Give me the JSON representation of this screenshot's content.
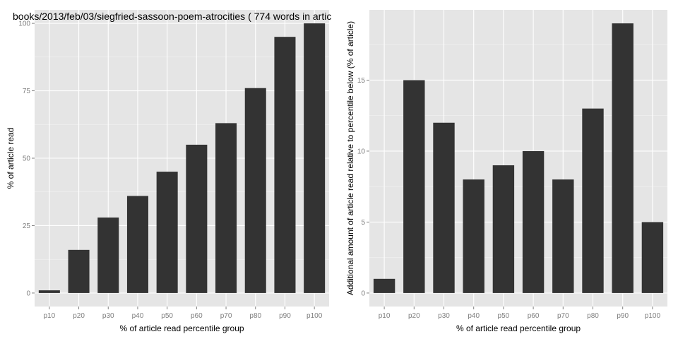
{
  "chart_data": [
    {
      "type": "bar",
      "title": "books/2013/feb/03/siegfried-sassoon-poem-atrocities ( 774 words in artic",
      "xlabel": "% of article read percentile group",
      "ylabel": "% of article read",
      "categories": [
        "p10",
        "p20",
        "p30",
        "p40",
        "p50",
        "p60",
        "p70",
        "p80",
        "p90",
        "p100"
      ],
      "values": [
        1,
        16,
        28,
        36,
        45,
        55,
        63,
        76,
        95,
        100
      ],
      "ylim": [
        -5,
        105
      ],
      "yticks": [
        0,
        25,
        50,
        75,
        100
      ],
      "grid": true,
      "bar_color": "#333333",
      "panel_color": "#e5e5e5"
    },
    {
      "type": "bar",
      "title": "",
      "xlabel": "% of article read percentile group",
      "ylabel": "Additional amount of article read relative to percentile below (% of article)",
      "categories": [
        "p10",
        "p20",
        "p30",
        "p40",
        "p50",
        "p60",
        "p70",
        "p80",
        "p90",
        "p100"
      ],
      "values": [
        1,
        15,
        12,
        8,
        9,
        10,
        8,
        13,
        19,
        5
      ],
      "ylim": [
        -0.95,
        19.95
      ],
      "yticks": [
        0,
        5,
        10,
        15
      ],
      "grid": true,
      "bar_color": "#333333",
      "panel_color": "#e5e5e5"
    }
  ]
}
